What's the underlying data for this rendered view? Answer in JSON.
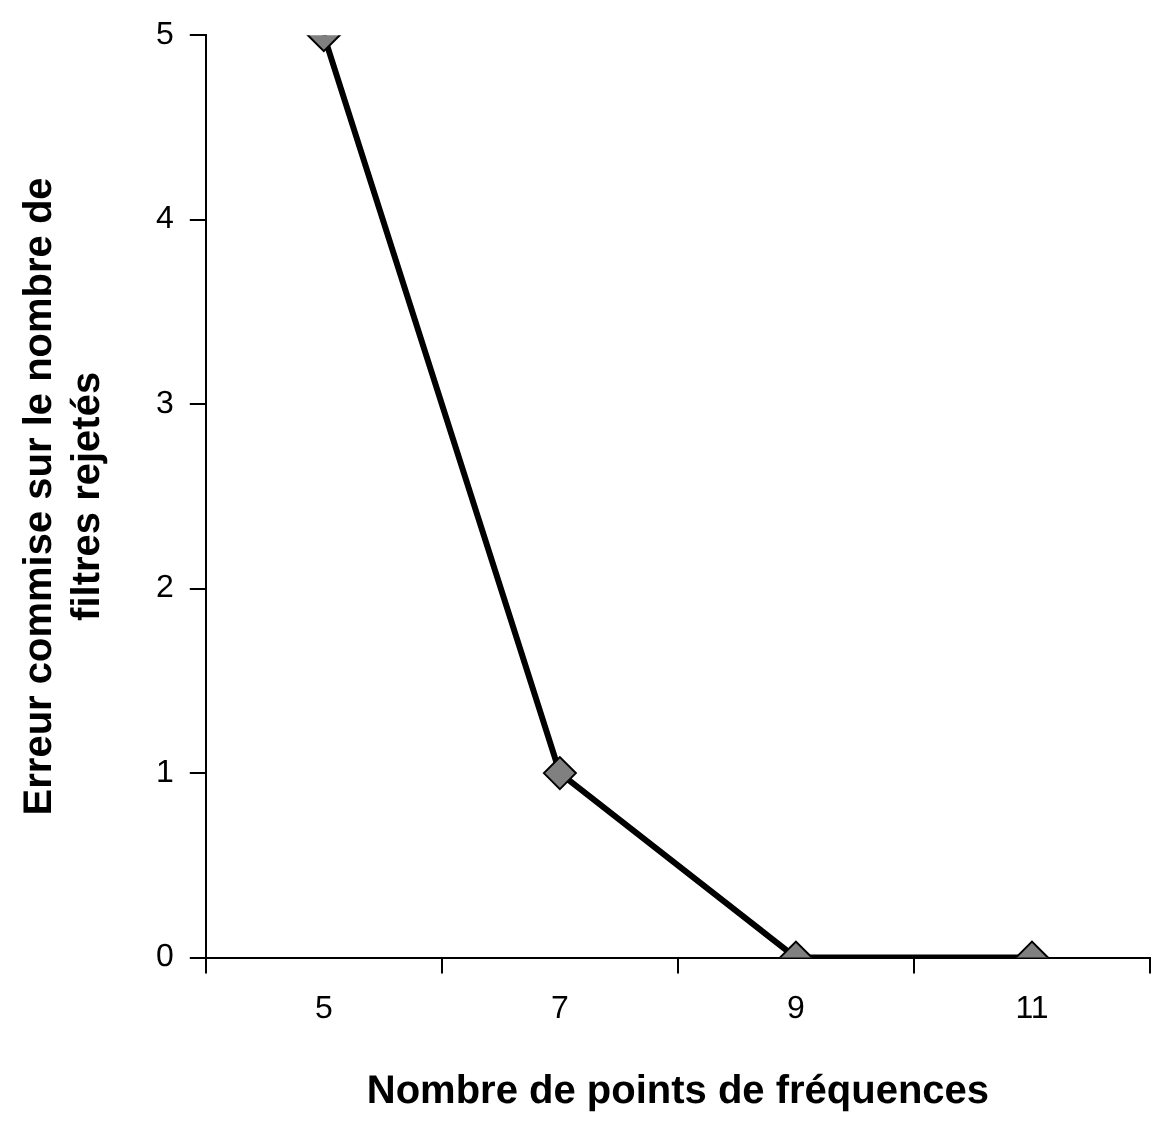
{
  "chart_data": {
    "type": "line",
    "xlabel": "Nombre de points de fréquences",
    "ylabel": "Erreur commise sur le nombre de\nfiltres rejetés",
    "categories": [
      "5",
      "7",
      "9",
      "11"
    ],
    "series": [
      {
        "color": "#000000",
        "values": [
          5,
          1,
          0,
          0
        ]
      }
    ],
    "ylim": [
      0,
      5
    ],
    "yticks": [
      0,
      1,
      2,
      3,
      4,
      5
    ],
    "grid": false,
    "legend": false,
    "marker": "diamond",
    "line_style": "solid"
  }
}
